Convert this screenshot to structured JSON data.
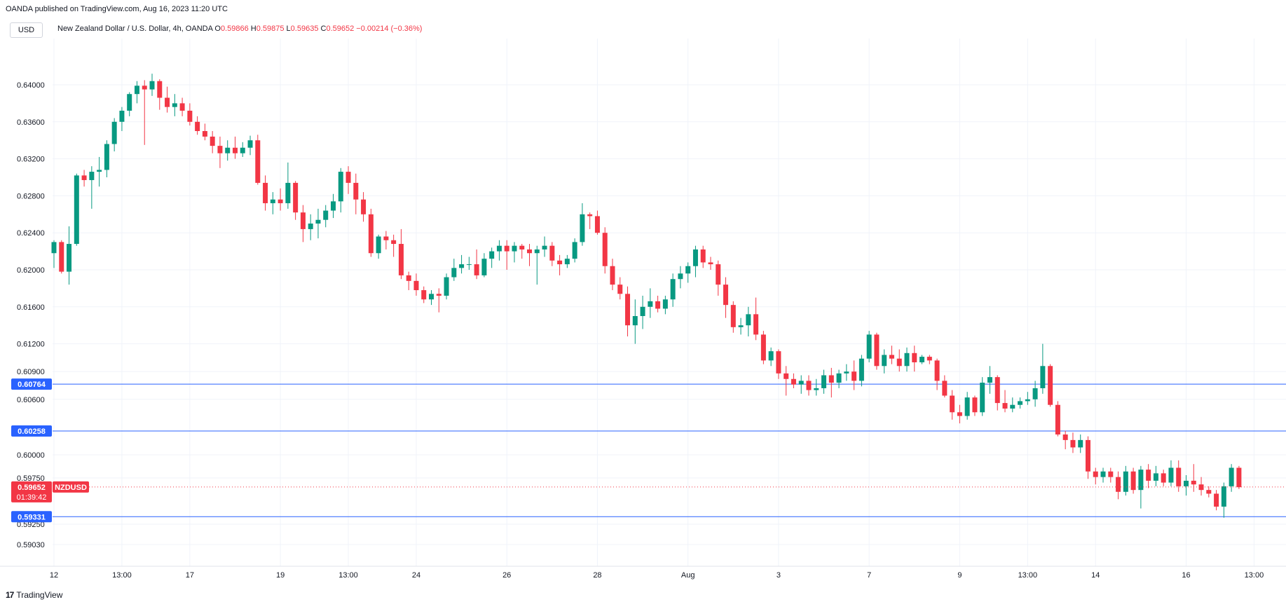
{
  "header": {
    "caption": "OANDA published on TradingView.com, Aug 16, 2023 11:20 UTC",
    "currency_button": "USD"
  },
  "legend": {
    "symbol": "New Zealand Dollar / U.S. Dollar, 4h, OANDA",
    "o_label": "O",
    "o_value": "0.59866",
    "h_label": "H",
    "h_value": "0.59875",
    "l_label": "L",
    "l_value": "0.59635",
    "c_label": "C",
    "c_value": "0.59652",
    "change": "−0.00214 (−0.36%)"
  },
  "footer": {
    "brand": "TradingView"
  },
  "colors": {
    "up": "#089981",
    "down": "#f23645",
    "hline": "#2962ff",
    "grid": "#f0f3fa",
    "text": "#131722"
  },
  "chart_data": {
    "type": "candlestick",
    "symbol": "NZDUSD",
    "ylim": [
      0.5885,
      0.6425
    ],
    "y_ticks": [
      {
        "v": 0.64,
        "label": "0.64000"
      },
      {
        "v": 0.636,
        "label": "0.63600"
      },
      {
        "v": 0.632,
        "label": "0.63200"
      },
      {
        "v": 0.628,
        "label": "0.62800"
      },
      {
        "v": 0.624,
        "label": "0.62400"
      },
      {
        "v": 0.62,
        "label": "0.62000"
      },
      {
        "v": 0.616,
        "label": "0.61600"
      },
      {
        "v": 0.612,
        "label": "0.61200"
      },
      {
        "v": 0.609,
        "label": "0.60900"
      },
      {
        "v": 0.606,
        "label": "0.60600"
      },
      {
        "v": 0.6,
        "label": "0.60000"
      },
      {
        "v": 0.5975,
        "label": "0.59750"
      },
      {
        "v": 0.5925,
        "label": "0.59250"
      },
      {
        "v": 0.5903,
        "label": "0.59030"
      }
    ],
    "x_ticks": [
      {
        "i": 0,
        "label": "12"
      },
      {
        "i": 9,
        "label": "13:00"
      },
      {
        "i": 18,
        "label": "17"
      },
      {
        "i": 30,
        "label": "19"
      },
      {
        "i": 39,
        "label": "13:00"
      },
      {
        "i": 48,
        "label": "24"
      },
      {
        "i": 60,
        "label": "26"
      },
      {
        "i": 72,
        "label": "28"
      },
      {
        "i": 84,
        "label": "Aug"
      },
      {
        "i": 96,
        "label": "3"
      },
      {
        "i": 108,
        "label": "7"
      },
      {
        "i": 120,
        "label": "9"
      },
      {
        "i": 129,
        "label": "13:00"
      },
      {
        "i": 138,
        "label": "14"
      },
      {
        "i": 150,
        "label": "16"
      },
      {
        "i": 159,
        "label": "13:00"
      }
    ],
    "horizontal_lines": [
      {
        "value": 0.60764,
        "label": "0.60764"
      },
      {
        "value": 0.60258,
        "label": "0.60258"
      },
      {
        "value": 0.59331,
        "label": "0.59331"
      }
    ],
    "last_price": {
      "value": 0.59652,
      "label": "0.59652",
      "countdown": "01:39:42",
      "symbol_label": "NZDUSD"
    },
    "candles": [
      [
        0.6218,
        0.6232,
        0.6202,
        0.623
      ],
      [
        0.623,
        0.6232,
        0.6196,
        0.6198
      ],
      [
        0.6198,
        0.6247,
        0.6184,
        0.6228
      ],
      [
        0.6228,
        0.6304,
        0.6226,
        0.6302
      ],
      [
        0.6302,
        0.6308,
        0.629,
        0.6297
      ],
      [
        0.6297,
        0.6312,
        0.6266,
        0.6306
      ],
      [
        0.6306,
        0.6322,
        0.629,
        0.6308
      ],
      [
        0.6308,
        0.634,
        0.63,
        0.6336
      ],
      [
        0.6336,
        0.6364,
        0.6328,
        0.636
      ],
      [
        0.636,
        0.6376,
        0.635,
        0.6372
      ],
      [
        0.6372,
        0.6392,
        0.6366,
        0.639
      ],
      [
        0.639,
        0.6404,
        0.638,
        0.6399
      ],
      [
        0.6399,
        0.6405,
        0.6335,
        0.6395
      ],
      [
        0.6395,
        0.6412,
        0.6388,
        0.6404
      ],
      [
        0.6404,
        0.6406,
        0.6373,
        0.6386
      ],
      [
        0.6386,
        0.6398,
        0.637,
        0.6376
      ],
      [
        0.6376,
        0.639,
        0.6366,
        0.638
      ],
      [
        0.638,
        0.6386,
        0.6366,
        0.6372
      ],
      [
        0.6372,
        0.638,
        0.6356,
        0.636
      ],
      [
        0.636,
        0.6366,
        0.6346,
        0.635
      ],
      [
        0.635,
        0.6358,
        0.634,
        0.6344
      ],
      [
        0.6344,
        0.635,
        0.6326,
        0.6334
      ],
      [
        0.6334,
        0.6344,
        0.631,
        0.6326
      ],
      [
        0.6326,
        0.634,
        0.6318,
        0.6332
      ],
      [
        0.6332,
        0.6344,
        0.632,
        0.6326
      ],
      [
        0.6326,
        0.6338,
        0.6322,
        0.6332
      ],
      [
        0.6332,
        0.6345,
        0.6324,
        0.634
      ],
      [
        0.634,
        0.6346,
        0.6292,
        0.6294
      ],
      [
        0.6294,
        0.6302,
        0.6264,
        0.6272
      ],
      [
        0.6272,
        0.6284,
        0.626,
        0.6276
      ],
      [
        0.6276,
        0.6288,
        0.6264,
        0.6272
      ],
      [
        0.6272,
        0.6316,
        0.6266,
        0.6294
      ],
      [
        0.6294,
        0.6296,
        0.6254,
        0.6262
      ],
      [
        0.6262,
        0.627,
        0.623,
        0.6244
      ],
      [
        0.6244,
        0.626,
        0.6232,
        0.625
      ],
      [
        0.625,
        0.6266,
        0.6234,
        0.6254
      ],
      [
        0.6254,
        0.627,
        0.6246,
        0.6264
      ],
      [
        0.6264,
        0.6282,
        0.6256,
        0.6274
      ],
      [
        0.6274,
        0.631,
        0.6262,
        0.6306
      ],
      [
        0.6306,
        0.6312,
        0.6282,
        0.6294
      ],
      [
        0.6294,
        0.6304,
        0.626,
        0.6276
      ],
      [
        0.6276,
        0.6284,
        0.6252,
        0.626
      ],
      [
        0.626,
        0.6266,
        0.6214,
        0.6218
      ],
      [
        0.6218,
        0.6238,
        0.6212,
        0.6236
      ],
      [
        0.6236,
        0.6242,
        0.6222,
        0.6232
      ],
      [
        0.6232,
        0.6238,
        0.6214,
        0.6228
      ],
      [
        0.6228,
        0.6244,
        0.619,
        0.6194
      ],
      [
        0.6194,
        0.6198,
        0.6178,
        0.6188
      ],
      [
        0.6188,
        0.6196,
        0.6172,
        0.6178
      ],
      [
        0.6178,
        0.6182,
        0.6164,
        0.6168
      ],
      [
        0.6168,
        0.6178,
        0.6162,
        0.6174
      ],
      [
        0.6174,
        0.618,
        0.6154,
        0.6172
      ],
      [
        0.6172,
        0.6196,
        0.6168,
        0.6192
      ],
      [
        0.6192,
        0.6212,
        0.6188,
        0.6202
      ],
      [
        0.6202,
        0.6216,
        0.6196,
        0.6206
      ],
      [
        0.6206,
        0.6214,
        0.62,
        0.6206
      ],
      [
        0.6206,
        0.6222,
        0.619,
        0.6194
      ],
      [
        0.6194,
        0.6218,
        0.6192,
        0.6212
      ],
      [
        0.6212,
        0.6224,
        0.6202,
        0.622
      ],
      [
        0.622,
        0.6232,
        0.621,
        0.6226
      ],
      [
        0.6226,
        0.6232,
        0.62,
        0.622
      ],
      [
        0.622,
        0.623,
        0.6208,
        0.6226
      ],
      [
        0.6226,
        0.6228,
        0.6212,
        0.6222
      ],
      [
        0.6222,
        0.6228,
        0.6204,
        0.6218
      ],
      [
        0.6218,
        0.6226,
        0.6184,
        0.6222
      ],
      [
        0.6222,
        0.6236,
        0.6214,
        0.6226
      ],
      [
        0.6226,
        0.623,
        0.6204,
        0.621
      ],
      [
        0.621,
        0.6216,
        0.6194,
        0.6206
      ],
      [
        0.6206,
        0.6216,
        0.6202,
        0.6212
      ],
      [
        0.6212,
        0.6234,
        0.6208,
        0.623
      ],
      [
        0.623,
        0.6272,
        0.6226,
        0.626
      ],
      [
        0.626,
        0.6262,
        0.6244,
        0.6258
      ],
      [
        0.6258,
        0.6264,
        0.6238,
        0.624
      ],
      [
        0.624,
        0.6246,
        0.6196,
        0.6204
      ],
      [
        0.6204,
        0.6212,
        0.6178,
        0.6184
      ],
      [
        0.6184,
        0.6192,
        0.6168,
        0.6174
      ],
      [
        0.6174,
        0.6182,
        0.6128,
        0.614
      ],
      [
        0.614,
        0.6168,
        0.612,
        0.615
      ],
      [
        0.615,
        0.6172,
        0.6136,
        0.616
      ],
      [
        0.616,
        0.618,
        0.6148,
        0.6166
      ],
      [
        0.6166,
        0.6172,
        0.6154,
        0.6158
      ],
      [
        0.6158,
        0.6172,
        0.6152,
        0.6168
      ],
      [
        0.6168,
        0.6196,
        0.616,
        0.619
      ],
      [
        0.619,
        0.6204,
        0.618,
        0.6196
      ],
      [
        0.6196,
        0.6208,
        0.6186,
        0.6204
      ],
      [
        0.6204,
        0.6226,
        0.6192,
        0.6222
      ],
      [
        0.6222,
        0.6226,
        0.6202,
        0.6208
      ],
      [
        0.6208,
        0.6214,
        0.62,
        0.6206
      ],
      [
        0.6206,
        0.621,
        0.6172,
        0.6184
      ],
      [
        0.6184,
        0.6192,
        0.6148,
        0.6162
      ],
      [
        0.6162,
        0.6166,
        0.6132,
        0.6138
      ],
      [
        0.6138,
        0.6148,
        0.613,
        0.614
      ],
      [
        0.614,
        0.616,
        0.6128,
        0.6152
      ],
      [
        0.6152,
        0.617,
        0.6124,
        0.613
      ],
      [
        0.613,
        0.6134,
        0.6098,
        0.6102
      ],
      [
        0.6102,
        0.6116,
        0.6096,
        0.6112
      ],
      [
        0.6112,
        0.6114,
        0.6082,
        0.6088
      ],
      [
        0.6088,
        0.6096,
        0.6064,
        0.6082
      ],
      [
        0.6082,
        0.6088,
        0.6072,
        0.6076
      ],
      [
        0.6076,
        0.6086,
        0.6066,
        0.608
      ],
      [
        0.608,
        0.6086,
        0.6064,
        0.607
      ],
      [
        0.607,
        0.6082,
        0.6064,
        0.6072
      ],
      [
        0.6072,
        0.6092,
        0.6066,
        0.6086
      ],
      [
        0.6086,
        0.6094,
        0.6062,
        0.6078
      ],
      [
        0.6078,
        0.6092,
        0.6072,
        0.6088
      ],
      [
        0.6088,
        0.6098,
        0.608,
        0.609
      ],
      [
        0.609,
        0.6102,
        0.607,
        0.608
      ],
      [
        0.608,
        0.6108,
        0.6074,
        0.6104
      ],
      [
        0.6104,
        0.6134,
        0.61,
        0.613
      ],
      [
        0.613,
        0.6132,
        0.6092,
        0.6096
      ],
      [
        0.6096,
        0.6114,
        0.6088,
        0.6108
      ],
      [
        0.6108,
        0.6118,
        0.6098,
        0.6104
      ],
      [
        0.6104,
        0.6114,
        0.609,
        0.6096
      ],
      [
        0.6096,
        0.6116,
        0.609,
        0.611
      ],
      [
        0.611,
        0.6118,
        0.609,
        0.61
      ],
      [
        0.61,
        0.6108,
        0.6098,
        0.6106
      ],
      [
        0.6106,
        0.6108,
        0.6098,
        0.6102
      ],
      [
        0.6102,
        0.6104,
        0.607,
        0.608
      ],
      [
        0.608,
        0.6086,
        0.6062,
        0.6064
      ],
      [
        0.6064,
        0.607,
        0.6038,
        0.6046
      ],
      [
        0.6046,
        0.6054,
        0.6034,
        0.6042
      ],
      [
        0.6042,
        0.6068,
        0.6038,
        0.6062
      ],
      [
        0.6062,
        0.6064,
        0.6042,
        0.6046
      ],
      [
        0.6046,
        0.6084,
        0.6042,
        0.6078
      ],
      [
        0.6078,
        0.6096,
        0.6066,
        0.6084
      ],
      [
        0.6084,
        0.6086,
        0.6048,
        0.6056
      ],
      [
        0.6056,
        0.607,
        0.6046,
        0.605
      ],
      [
        0.605,
        0.6062,
        0.6046,
        0.6054
      ],
      [
        0.6054,
        0.6062,
        0.605,
        0.6058
      ],
      [
        0.6058,
        0.6068,
        0.6054,
        0.606
      ],
      [
        0.606,
        0.608,
        0.6052,
        0.6072
      ],
      [
        0.6072,
        0.612,
        0.6066,
        0.6096
      ],
      [
        0.6096,
        0.6098,
        0.6052,
        0.6054
      ],
      [
        0.6054,
        0.6058,
        0.602,
        0.6022
      ],
      [
        0.6022,
        0.6026,
        0.6006,
        0.6016
      ],
      [
        0.6016,
        0.6024,
        0.6002,
        0.6008
      ],
      [
        0.6008,
        0.6022,
        0.6002,
        0.6016
      ],
      [
        0.6016,
        0.602,
        0.5974,
        0.5982
      ],
      [
        0.5982,
        0.5986,
        0.5968,
        0.5976
      ],
      [
        0.5976,
        0.5986,
        0.597,
        0.5982
      ],
      [
        0.5982,
        0.5986,
        0.597,
        0.5976
      ],
      [
        0.5976,
        0.5982,
        0.5952,
        0.596
      ],
      [
        0.596,
        0.5988,
        0.5956,
        0.5982
      ],
      [
        0.5982,
        0.5986,
        0.5958,
        0.5962
      ],
      [
        0.5962,
        0.5988,
        0.5942,
        0.5984
      ],
      [
        0.5984,
        0.599,
        0.5964,
        0.5972
      ],
      [
        0.5972,
        0.5988,
        0.5966,
        0.598
      ],
      [
        0.598,
        0.5984,
        0.5966,
        0.597
      ],
      [
        0.597,
        0.5994,
        0.5966,
        0.5986
      ],
      [
        0.5986,
        0.5994,
        0.596,
        0.5966
      ],
      [
        0.5966,
        0.5978,
        0.5956,
        0.5972
      ],
      [
        0.5972,
        0.599,
        0.596,
        0.5968
      ],
      [
        0.5968,
        0.5976,
        0.5956,
        0.5962
      ],
      [
        0.5962,
        0.5966,
        0.5954,
        0.5958
      ],
      [
        0.5958,
        0.5962,
        0.594,
        0.5944
      ],
      [
        0.5944,
        0.597,
        0.5932,
        0.5966
      ],
      [
        0.5966,
        0.599,
        0.596,
        0.5986
      ],
      [
        0.5986,
        0.5988,
        0.5963,
        0.5965
      ]
    ]
  }
}
